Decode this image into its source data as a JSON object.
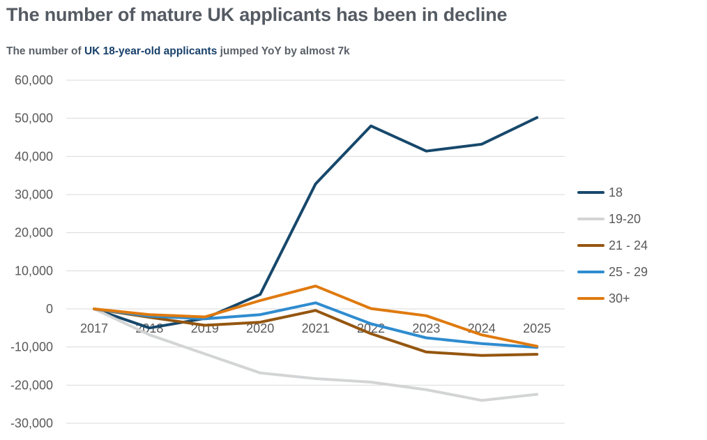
{
  "header": {
    "title": "The number of mature UK applicants has been in decline",
    "subtitle_prefix": "The number of ",
    "subtitle_highlight": "UK 18-year-old applicants",
    "subtitle_suffix": " jumped YoY by almost 7k"
  },
  "colors": {
    "highlight": "#17406a",
    "grid": "#d9d9d9",
    "text": "#595959"
  },
  "chart_data": {
    "type": "line",
    "title": "The number of mature UK applicants has been in decline",
    "subtitle": "The number of UK 18-year-old applicants jumped YoY by almost 7k",
    "xlabel": "",
    "ylabel": "",
    "x": [
      "2017",
      "2018",
      "2019",
      "2020",
      "2021",
      "2022",
      "2023",
      "2024",
      "2025"
    ],
    "ylim": [
      -30000,
      60000
    ],
    "yticks": [
      60000,
      50000,
      40000,
      30000,
      20000,
      10000,
      0,
      -10000,
      -20000,
      -30000
    ],
    "ytick_labels": [
      "60,000",
      "50,000",
      "40,000",
      "30,000",
      "20,000",
      "10,000",
      "0",
      "-10,000",
      "-20,000",
      "-30,000"
    ],
    "grid": true,
    "legend_position": "right",
    "series": [
      {
        "name": "18",
        "color": "#17486b",
        "values": [
          0,
          -5000,
          -2500,
          3800,
          32800,
          48000,
          41400,
          43200,
          50200
        ]
      },
      {
        "name": "19-20",
        "color": "#d3d4d5",
        "values": [
          0,
          -6800,
          -11800,
          -16800,
          -18300,
          -19200,
          -21200,
          -24000,
          -22400
        ]
      },
      {
        "name": "21 - 24",
        "color": "#94560f",
        "values": [
          0,
          -2200,
          -4300,
          -3500,
          -400,
          -6500,
          -11300,
          -12200,
          -11900
        ]
      },
      {
        "name": "25 - 29",
        "color": "#2f8ccf",
        "values": [
          0,
          -1900,
          -2600,
          -1500,
          1600,
          -3900,
          -7600,
          -9100,
          -10100
        ]
      },
      {
        "name": "30+",
        "color": "#df7a0f",
        "values": [
          0,
          -1500,
          -2100,
          2200,
          6000,
          100,
          -1800,
          -6800,
          -9800
        ]
      }
    ]
  }
}
